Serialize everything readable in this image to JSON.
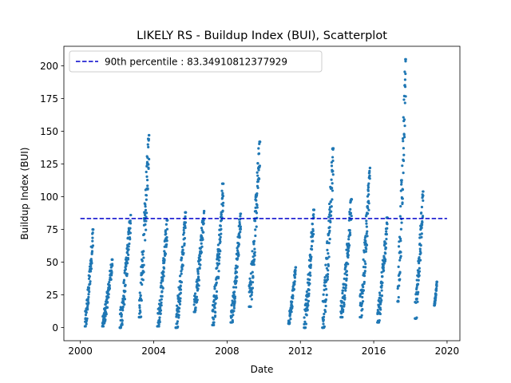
{
  "chart_data": {
    "type": "scatter",
    "title": "LIKELY RS - Buildup Index (BUI), Scatterplot",
    "xlabel": "Date",
    "ylabel": "Buildup Index (BUI)",
    "xlim": [
      1999.1,
      2020.7
    ],
    "ylim": [
      -10,
      215
    ],
    "xticks": [
      "2000",
      "2004",
      "2008",
      "2012",
      "2016",
      "2020"
    ],
    "yticks": [
      "0",
      "25",
      "50",
      "75",
      "100",
      "125",
      "150",
      "175",
      "200"
    ],
    "grid": false,
    "legend_position": "upper-left",
    "colors": {
      "points": "#1f77b4",
      "threshold": "#0000cc"
    },
    "threshold": {
      "label": "90th percentile : 83.34910812377929",
      "value": 83.34910812377929
    },
    "seasons": [
      {
        "year": 2000,
        "x_start": 2000.25,
        "x_end": 2000.7,
        "min": 1,
        "max": 75
      },
      {
        "year": 2001,
        "x_start": 2001.2,
        "x_end": 2001.75,
        "min": 1,
        "max": 52
      },
      {
        "year": 2002,
        "x_start": 2002.15,
        "x_end": 2002.75,
        "min": 0,
        "max": 86
      },
      {
        "year": 2003,
        "x_start": 2003.2,
        "x_end": 2003.75,
        "min": 8,
        "max": 147
      },
      {
        "year": 2004,
        "x_start": 2004.2,
        "x_end": 2004.75,
        "min": 1,
        "max": 82
      },
      {
        "year": 2005,
        "x_start": 2005.2,
        "x_end": 2005.75,
        "min": 0,
        "max": 88
      },
      {
        "year": 2006,
        "x_start": 2006.2,
        "x_end": 2006.75,
        "min": 12,
        "max": 89
      },
      {
        "year": 2007,
        "x_start": 2007.2,
        "x_end": 2007.8,
        "min": 2,
        "max": 110
      },
      {
        "year": 2008,
        "x_start": 2008.2,
        "x_end": 2008.75,
        "min": 4,
        "max": 87
      },
      {
        "year": 2009,
        "x_start": 2009.2,
        "x_end": 2009.8,
        "min": 16,
        "max": 142
      },
      {
        "year": 2011,
        "x_start": 2011.35,
        "x_end": 2011.75,
        "min": 3,
        "max": 46
      },
      {
        "year": 2012,
        "x_start": 2012.2,
        "x_end": 2012.75,
        "min": 0,
        "max": 90
      },
      {
        "year": 2013,
        "x_start": 2013.2,
        "x_end": 2013.8,
        "min": 0,
        "max": 137
      },
      {
        "year": 2014,
        "x_start": 2014.2,
        "x_end": 2014.8,
        "min": 8,
        "max": 98
      },
      {
        "year": 2015,
        "x_start": 2015.25,
        "x_end": 2015.8,
        "min": 8,
        "max": 122
      },
      {
        "year": 2016,
        "x_start": 2016.2,
        "x_end": 2016.75,
        "min": 4,
        "max": 84
      },
      {
        "year": 2017,
        "x_start": 2017.3,
        "x_end": 2017.75,
        "min": 20,
        "max": 205
      },
      {
        "year": 2018,
        "x_start": 2018.25,
        "x_end": 2018.7,
        "min": 7,
        "max": 104
      },
      {
        "year": 2019,
        "x_start": 2019.3,
        "x_end": 2019.45,
        "min": 17,
        "max": 35
      }
    ]
  }
}
